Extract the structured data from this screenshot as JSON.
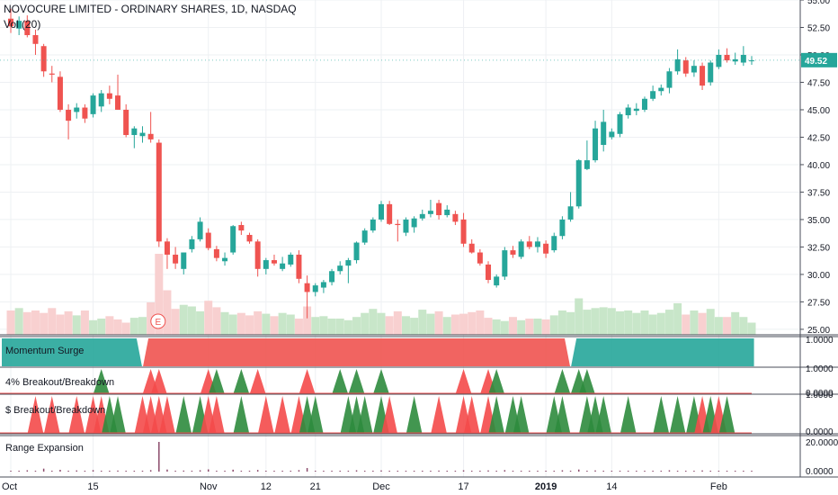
{
  "header": {
    "title": "NOVOCURE LIMITED - ORDINARY SHARES, 1D, NASDAQ",
    "volume_label": "Vol (20)"
  },
  "colors": {
    "up": "#26a69a",
    "down": "#ef5350",
    "up_vol": "#c8e6c9",
    "down_vol": "#f8d0d0",
    "price_badge": "#26a69a",
    "grid": "#eef0f3",
    "range_bar": "#8b4a6b"
  },
  "chart_data": [
    {
      "type": "candlestick",
      "title": "NOVOCURE LIMITED - ORDINARY SHARES, 1D, NASDAQ",
      "ylim": [
        24.5,
        55.0
      ],
      "y_ticks": [
        "25.00",
        "27.50",
        "30.00",
        "32.50",
        "35.00",
        "37.50",
        "40.00",
        "42.50",
        "45.00",
        "47.50",
        "50.00",
        "52.50",
        "55.00"
      ],
      "x_ticks": [
        "Oct",
        "15",
        "Nov",
        "12",
        "21",
        "Dec",
        "17",
        "2019",
        "14",
        "Feb"
      ],
      "last_price": "49.52",
      "earnings_marker": "E",
      "candles": [
        {
          "o": 53.3,
          "h": 54.2,
          "l": 52.0,
          "c": 52.6
        },
        {
          "o": 52.4,
          "h": 53.5,
          "l": 51.8,
          "c": 53.1
        },
        {
          "o": 53.1,
          "h": 53.6,
          "l": 51.6,
          "c": 51.8
        },
        {
          "o": 51.8,
          "h": 52.3,
          "l": 50.0,
          "c": 51.0
        },
        {
          "o": 50.8,
          "h": 51.0,
          "l": 48.0,
          "c": 48.5
        },
        {
          "o": 48.3,
          "h": 49.0,
          "l": 47.5,
          "c": 48.2
        },
        {
          "o": 48.0,
          "h": 48.5,
          "l": 44.8,
          "c": 45.0
        },
        {
          "o": 45.0,
          "h": 45.5,
          "l": 42.3,
          "c": 44.0
        },
        {
          "o": 44.8,
          "h": 45.6,
          "l": 44.2,
          "c": 45.2
        },
        {
          "o": 45.2,
          "h": 45.5,
          "l": 43.8,
          "c": 44.2
        },
        {
          "o": 44.6,
          "h": 46.5,
          "l": 44.3,
          "c": 46.3
        },
        {
          "o": 45.3,
          "h": 46.8,
          "l": 44.8,
          "c": 46.5
        },
        {
          "o": 46.5,
          "h": 47.2,
          "l": 45.5,
          "c": 46.0
        },
        {
          "o": 46.3,
          "h": 48.2,
          "l": 45.0,
          "c": 45.0
        },
        {
          "o": 45.0,
          "h": 45.5,
          "l": 42.5,
          "c": 42.7
        },
        {
          "o": 42.7,
          "h": 43.5,
          "l": 41.5,
          "c": 43.3
        },
        {
          "o": 42.6,
          "h": 43.5,
          "l": 42.0,
          "c": 42.9
        },
        {
          "o": 42.8,
          "h": 44.8,
          "l": 42.0,
          "c": 42.3
        },
        {
          "o": 42.0,
          "h": 42.3,
          "l": 32.5,
          "c": 33.0
        },
        {
          "o": 33.0,
          "h": 33.3,
          "l": 30.5,
          "c": 31.8
        },
        {
          "o": 31.8,
          "h": 32.5,
          "l": 30.5,
          "c": 31.0
        },
        {
          "o": 30.5,
          "h": 32.0,
          "l": 30.0,
          "c": 32.0
        },
        {
          "o": 32.3,
          "h": 33.5,
          "l": 32.0,
          "c": 33.2
        },
        {
          "o": 33.2,
          "h": 35.2,
          "l": 33.0,
          "c": 34.8
        },
        {
          "o": 33.8,
          "h": 34.2,
          "l": 32.2,
          "c": 32.4
        },
        {
          "o": 32.3,
          "h": 32.6,
          "l": 31.2,
          "c": 31.5
        },
        {
          "o": 31.2,
          "h": 32.0,
          "l": 30.8,
          "c": 31.5
        },
        {
          "o": 32.0,
          "h": 34.5,
          "l": 31.8,
          "c": 34.4
        },
        {
          "o": 34.5,
          "h": 34.8,
          "l": 33.6,
          "c": 34.0
        },
        {
          "o": 33.6,
          "h": 33.8,
          "l": 32.8,
          "c": 33.0
        },
        {
          "o": 33.0,
          "h": 33.2,
          "l": 29.8,
          "c": 30.5
        },
        {
          "o": 30.5,
          "h": 31.5,
          "l": 30.0,
          "c": 31.3
        },
        {
          "o": 31.3,
          "h": 31.8,
          "l": 30.8,
          "c": 31.0
        },
        {
          "o": 30.5,
          "h": 31.6,
          "l": 30.3,
          "c": 31.0
        },
        {
          "o": 30.9,
          "h": 32.0,
          "l": 30.7,
          "c": 31.8
        },
        {
          "o": 31.8,
          "h": 32.2,
          "l": 29.2,
          "c": 29.6
        },
        {
          "o": 29.2,
          "h": 29.9,
          "l": 26.0,
          "c": 28.4
        },
        {
          "o": 28.4,
          "h": 29.2,
          "l": 28.0,
          "c": 29.0
        },
        {
          "o": 28.8,
          "h": 29.5,
          "l": 28.3,
          "c": 29.3
        },
        {
          "o": 29.3,
          "h": 30.5,
          "l": 29.0,
          "c": 30.3
        },
        {
          "o": 30.3,
          "h": 31.2,
          "l": 30.0,
          "c": 30.8
        },
        {
          "o": 30.8,
          "h": 31.5,
          "l": 29.2,
          "c": 31.3
        },
        {
          "o": 31.3,
          "h": 33.0,
          "l": 31.0,
          "c": 32.9
        },
        {
          "o": 32.9,
          "h": 34.2,
          "l": 32.7,
          "c": 34.0
        },
        {
          "o": 34.0,
          "h": 35.2,
          "l": 33.8,
          "c": 35.0
        },
        {
          "o": 35.0,
          "h": 36.7,
          "l": 34.8,
          "c": 36.4
        },
        {
          "o": 36.4,
          "h": 36.7,
          "l": 34.5,
          "c": 34.6
        },
        {
          "o": 34.6,
          "h": 35.0,
          "l": 33.0,
          "c": 34.5
        },
        {
          "o": 33.8,
          "h": 35.2,
          "l": 33.5,
          "c": 35.0
        },
        {
          "o": 34.3,
          "h": 35.3,
          "l": 33.8,
          "c": 35.1
        },
        {
          "o": 35.1,
          "h": 35.9,
          "l": 34.9,
          "c": 35.5
        },
        {
          "o": 35.5,
          "h": 36.8,
          "l": 35.2,
          "c": 35.8
        },
        {
          "o": 36.5,
          "h": 36.8,
          "l": 35.0,
          "c": 35.4
        },
        {
          "o": 35.4,
          "h": 36.3,
          "l": 35.2,
          "c": 35.9
        },
        {
          "o": 35.5,
          "h": 35.8,
          "l": 34.5,
          "c": 34.8
        },
        {
          "o": 35.0,
          "h": 35.6,
          "l": 32.5,
          "c": 32.8
        },
        {
          "o": 32.8,
          "h": 33.2,
          "l": 31.9,
          "c": 32.0
        },
        {
          "o": 32.0,
          "h": 32.3,
          "l": 30.8,
          "c": 31.0
        },
        {
          "o": 30.9,
          "h": 31.2,
          "l": 29.2,
          "c": 29.5
        },
        {
          "o": 29.0,
          "h": 30.0,
          "l": 28.8,
          "c": 29.8
        },
        {
          "o": 29.8,
          "h": 32.5,
          "l": 29.5,
          "c": 32.2
        },
        {
          "o": 32.2,
          "h": 32.6,
          "l": 31.5,
          "c": 31.8
        },
        {
          "o": 31.6,
          "h": 33.2,
          "l": 31.4,
          "c": 33.0
        },
        {
          "o": 33.0,
          "h": 33.5,
          "l": 32.3,
          "c": 32.5
        },
        {
          "o": 32.5,
          "h": 33.4,
          "l": 32.0,
          "c": 33.0
        },
        {
          "o": 32.8,
          "h": 33.1,
          "l": 31.5,
          "c": 31.9
        },
        {
          "o": 32.2,
          "h": 33.8,
          "l": 32.0,
          "c": 33.5
        },
        {
          "o": 33.5,
          "h": 35.3,
          "l": 33.2,
          "c": 35.0
        },
        {
          "o": 35.0,
          "h": 37.5,
          "l": 34.8,
          "c": 36.2
        },
        {
          "o": 36.2,
          "h": 40.5,
          "l": 36.0,
          "c": 40.4
        },
        {
          "o": 39.6,
          "h": 42.2,
          "l": 39.5,
          "c": 40.4
        },
        {
          "o": 40.4,
          "h": 44.0,
          "l": 40.2,
          "c": 43.3
        },
        {
          "o": 41.8,
          "h": 45.0,
          "l": 41.2,
          "c": 43.9
        },
        {
          "o": 42.5,
          "h": 43.3,
          "l": 42.3,
          "c": 43.0
        },
        {
          "o": 42.8,
          "h": 44.8,
          "l": 42.5,
          "c": 44.6
        },
        {
          "o": 44.5,
          "h": 45.5,
          "l": 44.2,
          "c": 45.2
        },
        {
          "o": 44.9,
          "h": 45.6,
          "l": 44.5,
          "c": 45.1
        },
        {
          "o": 45.0,
          "h": 46.2,
          "l": 44.8,
          "c": 46.0
        },
        {
          "o": 46.0,
          "h": 47.2,
          "l": 45.8,
          "c": 46.7
        },
        {
          "o": 46.7,
          "h": 47.3,
          "l": 46.3,
          "c": 47.0
        },
        {
          "o": 47.0,
          "h": 48.8,
          "l": 46.5,
          "c": 48.5
        },
        {
          "o": 48.5,
          "h": 50.5,
          "l": 48.2,
          "c": 49.6
        },
        {
          "o": 49.5,
          "h": 49.8,
          "l": 48.0,
          "c": 48.3
        },
        {
          "o": 48.4,
          "h": 49.5,
          "l": 48.0,
          "c": 49.0
        },
        {
          "o": 49.0,
          "h": 49.3,
          "l": 46.8,
          "c": 47.2
        },
        {
          "o": 47.5,
          "h": 49.5,
          "l": 47.2,
          "c": 49.3
        },
        {
          "o": 48.9,
          "h": 50.5,
          "l": 48.7,
          "c": 50.0
        },
        {
          "o": 50.0,
          "h": 50.6,
          "l": 49.3,
          "c": 49.5
        },
        {
          "o": 49.4,
          "h": 50.2,
          "l": 49.1,
          "c": 49.6
        },
        {
          "o": 49.3,
          "h": 50.8,
          "l": 49.0,
          "c": 50.0
        },
        {
          "o": 49.5,
          "h": 49.9,
          "l": 49.1,
          "c": 49.5
        }
      ],
      "volume": [
        0.3,
        0.33,
        0.28,
        0.3,
        0.27,
        0.33,
        0.25,
        0.29,
        0.24,
        0.3,
        0.18,
        0.2,
        0.23,
        0.19,
        0.15,
        0.21,
        0.22,
        0.4,
        1.0,
        0.55,
        0.32,
        0.37,
        0.35,
        0.29,
        0.42,
        0.34,
        0.28,
        0.25,
        0.27,
        0.24,
        0.29,
        0.26,
        0.23,
        0.27,
        0.25,
        0.2,
        0.35,
        0.22,
        0.23,
        0.2,
        0.2,
        0.18,
        0.22,
        0.27,
        0.32,
        0.27,
        0.23,
        0.29,
        0.23,
        0.21,
        0.31,
        0.26,
        0.29,
        0.22,
        0.25,
        0.26,
        0.28,
        0.3,
        0.21,
        0.19,
        0.17,
        0.22,
        0.18,
        0.2,
        0.2,
        0.19,
        0.24,
        0.3,
        0.28,
        0.45,
        0.31,
        0.33,
        0.34,
        0.33,
        0.29,
        0.3,
        0.27,
        0.3,
        0.25,
        0.27,
        0.31,
        0.39,
        0.25,
        0.3,
        0.27,
        0.32,
        0.22,
        0.22,
        0.28,
        0.22,
        0.15
      ]
    },
    {
      "type": "area",
      "title": "Momentum Surge",
      "y_ticks": [
        "1.0000"
      ],
      "segments": [
        {
          "from": 0,
          "to": 15,
          "dir": "up"
        },
        {
          "from": 17,
          "to": 67,
          "dir": "down"
        },
        {
          "from": 69,
          "to": 90,
          "dir": "up"
        }
      ]
    },
    {
      "type": "area",
      "title": "4% Breakout/Breakdown",
      "y_ticks": [
        "1.0000",
        "0.0000"
      ],
      "triangles": [
        {
          "i": 11,
          "dir": "up"
        },
        {
          "i": 17,
          "dir": "down"
        },
        {
          "i": 18,
          "dir": "down"
        },
        {
          "i": 24,
          "dir": "down"
        },
        {
          "i": 25,
          "dir": "up"
        },
        {
          "i": 28,
          "dir": "up"
        },
        {
          "i": 30,
          "dir": "down"
        },
        {
          "i": 36,
          "dir": "down"
        },
        {
          "i": 40,
          "dir": "up"
        },
        {
          "i": 42,
          "dir": "up"
        },
        {
          "i": 45,
          "dir": "up"
        },
        {
          "i": 55,
          "dir": "down"
        },
        {
          "i": 58,
          "dir": "down"
        },
        {
          "i": 59,
          "dir": "up"
        },
        {
          "i": 67,
          "dir": "up"
        },
        {
          "i": 69,
          "dir": "up"
        },
        {
          "i": 70,
          "dir": "up"
        }
      ]
    },
    {
      "type": "area",
      "title": "$ Breakout/Breakdown",
      "y_ticks": [
        "1.0000",
        "0.0000"
      ],
      "triangles": [
        {
          "i": 3,
          "dir": "down"
        },
        {
          "i": 5,
          "dir": "down"
        },
        {
          "i": 8,
          "dir": "down"
        },
        {
          "i": 10,
          "dir": "down"
        },
        {
          "i": 11,
          "dir": "down"
        },
        {
          "i": 12,
          "dir": "up"
        },
        {
          "i": 13,
          "dir": "up"
        },
        {
          "i": 16,
          "dir": "down"
        },
        {
          "i": 17,
          "dir": "down"
        },
        {
          "i": 18,
          "dir": "down"
        },
        {
          "i": 19,
          "dir": "down"
        },
        {
          "i": 21,
          "dir": "up"
        },
        {
          "i": 23,
          "dir": "up"
        },
        {
          "i": 24,
          "dir": "down"
        },
        {
          "i": 25,
          "dir": "down"
        },
        {
          "i": 28,
          "dir": "up"
        },
        {
          "i": 31,
          "dir": "down"
        },
        {
          "i": 33,
          "dir": "down"
        },
        {
          "i": 35,
          "dir": "down"
        },
        {
          "i": 36,
          "dir": "up"
        },
        {
          "i": 37,
          "dir": "up"
        },
        {
          "i": 41,
          "dir": "up"
        },
        {
          "i": 42,
          "dir": "up"
        },
        {
          "i": 43,
          "dir": "up"
        },
        {
          "i": 45,
          "dir": "up"
        },
        {
          "i": 46,
          "dir": "down"
        },
        {
          "i": 49,
          "dir": "up"
        },
        {
          "i": 52,
          "dir": "down"
        },
        {
          "i": 55,
          "dir": "down"
        },
        {
          "i": 56,
          "dir": "down"
        },
        {
          "i": 58,
          "dir": "down"
        },
        {
          "i": 59,
          "dir": "up"
        },
        {
          "i": 61,
          "dir": "up"
        },
        {
          "i": 62,
          "dir": "up"
        },
        {
          "i": 66,
          "dir": "up"
        },
        {
          "i": 67,
          "dir": "up"
        },
        {
          "i": 70,
          "dir": "up"
        },
        {
          "i": 71,
          "dir": "up"
        },
        {
          "i": 72,
          "dir": "up"
        },
        {
          "i": 75,
          "dir": "up"
        },
        {
          "i": 79,
          "dir": "up"
        },
        {
          "i": 81,
          "dir": "up"
        },
        {
          "i": 83,
          "dir": "up"
        },
        {
          "i": 84,
          "dir": "down"
        },
        {
          "i": 85,
          "dir": "up"
        },
        {
          "i": 86,
          "dir": "down"
        },
        {
          "i": 87,
          "dir": "up"
        }
      ]
    },
    {
      "type": "bar",
      "title": "Range Expansion",
      "y_ticks": [
        "20.0000",
        "0.0000"
      ],
      "values": [
        0.5,
        0.3,
        0.9,
        0.4,
        2.0,
        0.6,
        1.2,
        0.4,
        0.8,
        0.3,
        1.0,
        0.5,
        0.4,
        0.7,
        0.3,
        0.6,
        0.4,
        1.0,
        20.0,
        1.4,
        0.5,
        0.7,
        0.4,
        0.9,
        1.5,
        0.6,
        0.3,
        1.3,
        0.4,
        0.6,
        1.1,
        0.5,
        0.3,
        0.4,
        0.5,
        1.0,
        2.4,
        0.5,
        0.4,
        0.6,
        0.5,
        0.4,
        0.9,
        0.5,
        0.6,
        0.8,
        0.5,
        0.4,
        0.3,
        0.6,
        0.4,
        0.5,
        0.7,
        0.3,
        0.5,
        0.9,
        0.4,
        0.6,
        0.8,
        0.4,
        1.0,
        0.4,
        0.6,
        0.3,
        0.5,
        0.4,
        0.6,
        0.9,
        0.5,
        1.4,
        0.6,
        0.8,
        0.5,
        0.4,
        0.4,
        0.3,
        0.5,
        0.4,
        0.3,
        0.5,
        0.9,
        0.6,
        0.4,
        0.5,
        0.8,
        0.5,
        0.4,
        0.3,
        0.4,
        0.3,
        0.2
      ]
    }
  ]
}
